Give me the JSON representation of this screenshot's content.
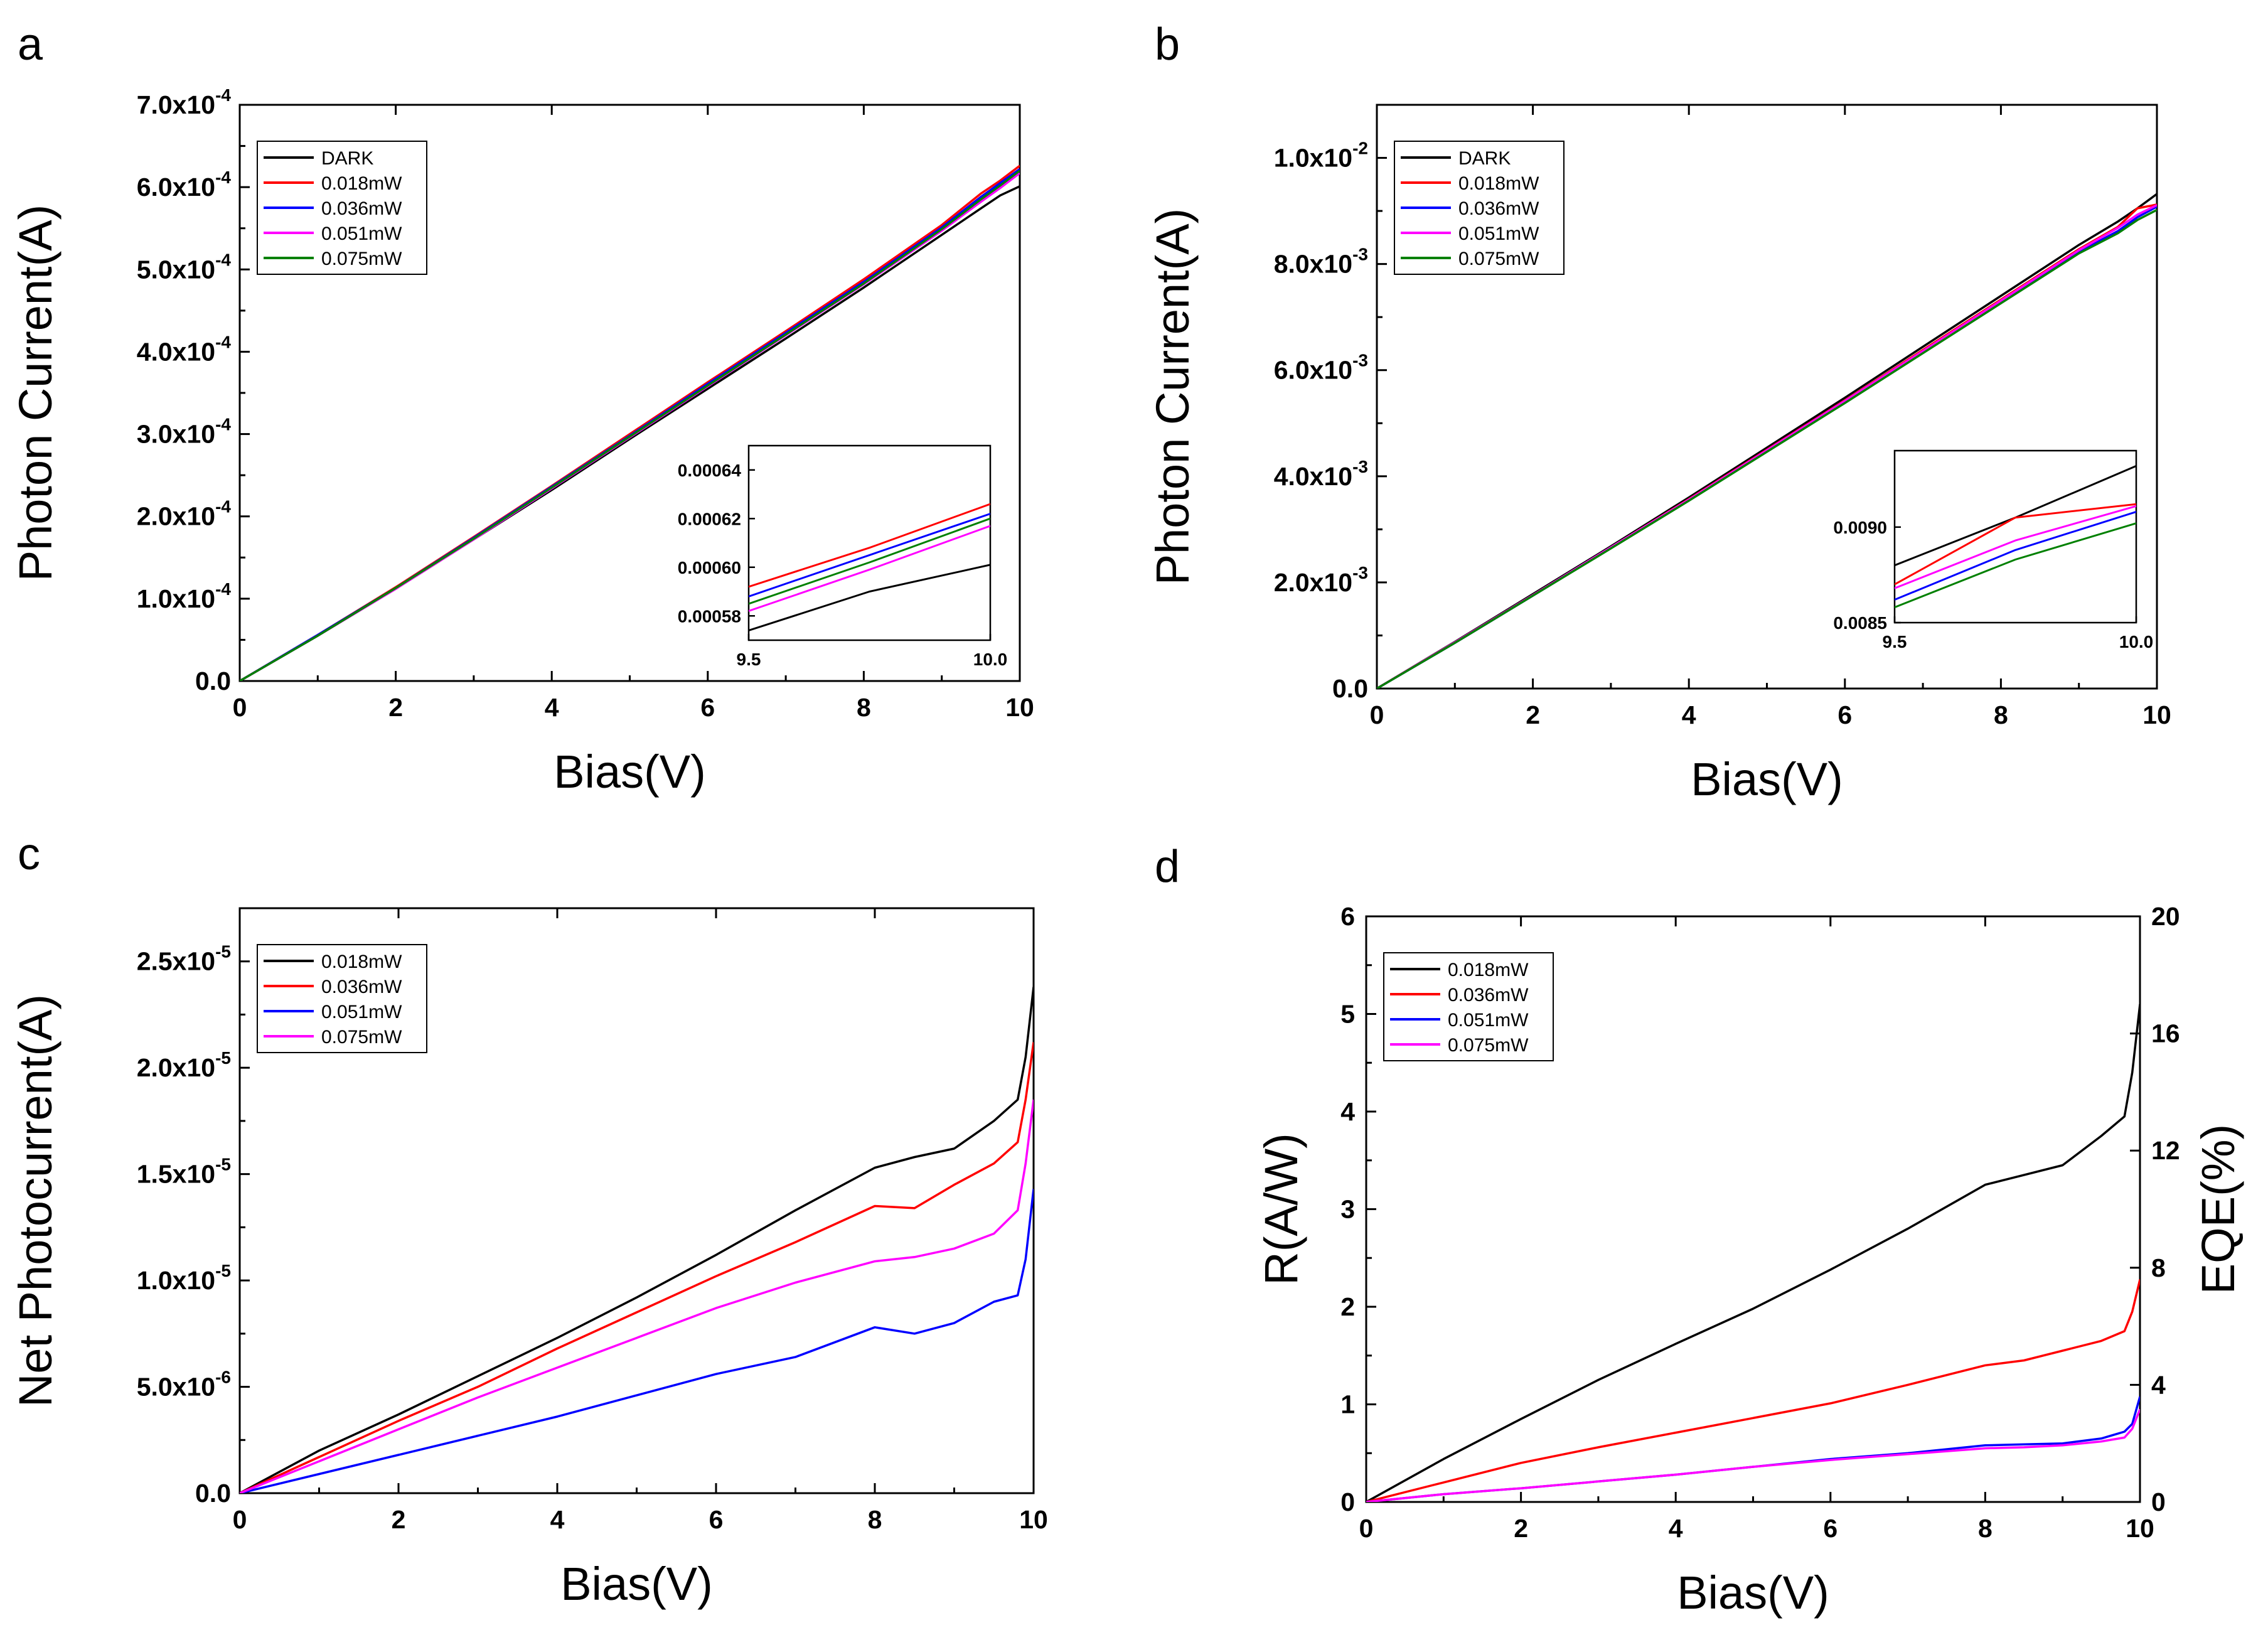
{
  "chart_data": [
    {
      "panel": "a",
      "type": "line",
      "title": "",
      "xlabel": "Bias(V)",
      "ylabel": "Photon Current(A)",
      "xlim": [
        0,
        10
      ],
      "ylim": [
        0,
        0.0007
      ],
      "x_ticks": [
        {
          "value": 0,
          "label": "0"
        },
        {
          "value": 2,
          "label": "2"
        },
        {
          "value": 4,
          "label": "4"
        },
        {
          "value": 6,
          "label": "6"
        },
        {
          "value": 8,
          "label": "8"
        },
        {
          "value": 10,
          "label": "10"
        }
      ],
      "y_ticks": [
        {
          "value": 0,
          "mantissa": "0.0",
          "exponent": ""
        },
        {
          "value": 0.0001,
          "mantissa": "1.0x10",
          "exponent": "-4"
        },
        {
          "value": 0.0002,
          "mantissa": "2.0x10",
          "exponent": "-4"
        },
        {
          "value": 0.0003,
          "mantissa": "3.0x10",
          "exponent": "-4"
        },
        {
          "value": 0.0004,
          "mantissa": "4.0x10",
          "exponent": "-4"
        },
        {
          "value": 0.0005,
          "mantissa": "5.0x10",
          "exponent": "-4"
        },
        {
          "value": 0.0006,
          "mantissa": "6.0x10",
          "exponent": "-4"
        },
        {
          "value": 0.0007,
          "mantissa": "7.0x10",
          "exponent": "-4"
        }
      ],
      "legend_position": "top-left",
      "x": [
        0,
        1,
        2,
        3,
        4,
        5,
        6,
        7,
        8,
        9,
        9.5,
        9.75,
        10
      ],
      "series": [
        {
          "name": "DARK",
          "color": "#000000",
          "values": [
            0,
            5.5e-05,
            0.000112,
            0.000172,
            0.000232,
            0.000294,
            0.000355,
            0.000416,
            0.000478,
            0.000542,
            0.000574,
            0.00059,
            0.000601
          ]
        },
        {
          "name": "0.018mW",
          "color": "#ff0000",
          "values": [
            0,
            5.6e-05,
            0.000114,
            0.000175,
            0.000237,
            0.0003,
            0.000363,
            0.000425,
            0.000488,
            0.000554,
            0.000592,
            0.000608,
            0.000626
          ]
        },
        {
          "name": "0.036mW",
          "color": "#0000ff",
          "values": [
            0,
            5.6e-05,
            0.000113,
            0.000174,
            0.000236,
            0.000298,
            0.000361,
            0.000423,
            0.000485,
            0.000551,
            0.000588,
            0.000605,
            0.000622
          ]
        },
        {
          "name": "0.051mW",
          "color": "#ff00ff",
          "values": [
            0,
            5.5e-05,
            0.000112,
            0.000172,
            0.000234,
            0.000296,
            0.000358,
            0.00042,
            0.000482,
            0.000547,
            0.000582,
            0.000599,
            0.000617
          ]
        },
        {
          "name": "0.075mW",
          "color": "#008000",
          "values": [
            0,
            5.5e-05,
            0.000113,
            0.000173,
            0.000235,
            0.000297,
            0.000359,
            0.000421,
            0.000483,
            0.000549,
            0.000585,
            0.000602,
            0.00062
          ]
        }
      ],
      "inset": {
        "xlim": [
          9.5,
          10.0
        ],
        "ylim": [
          0.00057,
          0.00065
        ],
        "x_ticks": [
          {
            "value": 9.5,
            "label": "9.5"
          },
          {
            "value": 10.0,
            "label": "10.0"
          }
        ],
        "y_ticks": [
          {
            "value": 0.00058,
            "label": "0.00058"
          },
          {
            "value": 0.0006,
            "label": "0.00060"
          },
          {
            "value": 0.00062,
            "label": "0.00062"
          },
          {
            "value": 0.00064,
            "label": "0.00064"
          }
        ]
      }
    },
    {
      "panel": "b",
      "type": "line",
      "title": "",
      "xlabel": "Bias(V)",
      "ylabel": "Photon Current(A)",
      "xlim": [
        0,
        10
      ],
      "ylim": [
        0,
        0.011
      ],
      "x_ticks": [
        {
          "value": 0,
          "label": "0"
        },
        {
          "value": 2,
          "label": "2"
        },
        {
          "value": 4,
          "label": "4"
        },
        {
          "value": 6,
          "label": "6"
        },
        {
          "value": 8,
          "label": "8"
        },
        {
          "value": 10,
          "label": "10"
        }
      ],
      "y_ticks": [
        {
          "value": 0,
          "mantissa": "0.0",
          "exponent": ""
        },
        {
          "value": 0.002,
          "mantissa": "2.0x10",
          "exponent": "-3"
        },
        {
          "value": 0.004,
          "mantissa": "4.0x10",
          "exponent": "-3"
        },
        {
          "value": 0.006,
          "mantissa": "6.0x10",
          "exponent": "-3"
        },
        {
          "value": 0.008,
          "mantissa": "8.0x10",
          "exponent": "-3"
        },
        {
          "value": 0.01,
          "mantissa": "1.0x10",
          "exponent": "-2"
        }
      ],
      "legend_position": "top-left",
      "x": [
        0,
        1,
        2,
        3,
        4,
        5,
        6,
        7,
        8,
        9,
        9.5,
        9.75,
        10
      ],
      "series": [
        {
          "name": "DARK",
          "color": "#000000",
          "values": [
            0,
            0.00088,
            0.00178,
            0.00268,
            0.0036,
            0.00454,
            0.00548,
            0.00644,
            0.0074,
            0.00836,
            0.0088,
            0.00905,
            0.00932
          ]
        },
        {
          "name": "0.018mW",
          "color": "#ff0000",
          "values": [
            0,
            0.00087,
            0.00176,
            0.00266,
            0.00357,
            0.0045,
            0.00543,
            0.00638,
            0.00733,
            0.00828,
            0.0087,
            0.00905,
            0.00912
          ]
        },
        {
          "name": "0.036mW",
          "color": "#0000ff",
          "values": [
            0,
            0.00086,
            0.00175,
            0.00265,
            0.00355,
            0.00447,
            0.0054,
            0.00634,
            0.00729,
            0.00823,
            0.00862,
            0.00888,
            0.00908
          ]
        },
        {
          "name": "0.051mW",
          "color": "#ff00ff",
          "values": [
            0,
            0.00087,
            0.00176,
            0.00266,
            0.00356,
            0.00449,
            0.00542,
            0.00636,
            0.00731,
            0.00826,
            0.00868,
            0.00893,
            0.00911
          ]
        },
        {
          "name": "0.075mW",
          "color": "#008000",
          "values": [
            0,
            0.00086,
            0.00175,
            0.00264,
            0.00354,
            0.00446,
            0.00538,
            0.00632,
            0.00726,
            0.0082,
            0.00858,
            0.00883,
            0.00902
          ]
        }
      ],
      "inset": {
        "xlim": [
          9.5,
          10.0
        ],
        "ylim": [
          0.0085,
          0.0094
        ],
        "x_ticks": [
          {
            "value": 9.5,
            "label": "9.5"
          },
          {
            "value": 10.0,
            "label": "10.0"
          }
        ],
        "y_ticks": [
          {
            "value": 0.0085,
            "label": "0.0085"
          },
          {
            "value": 0.009,
            "label": "0.0090"
          }
        ]
      }
    },
    {
      "panel": "c",
      "type": "line",
      "title": "",
      "xlabel": "Bias(V)",
      "ylabel": "Net Photocurrent(A)",
      "xlim": [
        0,
        10
      ],
      "ylim": [
        0,
        2.75e-05
      ],
      "x_ticks": [
        {
          "value": 0,
          "label": "0"
        },
        {
          "value": 2,
          "label": "2"
        },
        {
          "value": 4,
          "label": "4"
        },
        {
          "value": 6,
          "label": "6"
        },
        {
          "value": 8,
          "label": "8"
        },
        {
          "value": 10,
          "label": "10"
        }
      ],
      "y_ticks": [
        {
          "value": 0,
          "mantissa": "0.0",
          "exponent": ""
        },
        {
          "value": 5e-06,
          "mantissa": "5.0x10",
          "exponent": "-6"
        },
        {
          "value": 1e-05,
          "mantissa": "1.0x10",
          "exponent": "-5"
        },
        {
          "value": 1.5e-05,
          "mantissa": "1.5x10",
          "exponent": "-5"
        },
        {
          "value": 2e-05,
          "mantissa": "2.0x10",
          "exponent": "-5"
        },
        {
          "value": 2.5e-05,
          "mantissa": "2.5x10",
          "exponent": "-5"
        }
      ],
      "legend_position": "top-left",
      "x": [
        0,
        1,
        2,
        3,
        4,
        5,
        6,
        7,
        8,
        8.5,
        9,
        9.5,
        9.8,
        9.9,
        10
      ],
      "series": [
        {
          "name": "0.018mW",
          "color": "#000000",
          "values": [
            0,
            2e-06,
            3.7e-06,
            5.5e-06,
            7.3e-06,
            9.2e-06,
            1.12e-05,
            1.33e-05,
            1.53e-05,
            1.58e-05,
            1.62e-05,
            1.75e-05,
            1.85e-05,
            2.05e-05,
            2.38e-05
          ]
        },
        {
          "name": "0.036mW",
          "color": "#ff0000",
          "values": [
            0,
            1.7e-06,
            3.4e-06,
            5e-06,
            6.8e-06,
            8.5e-06,
            1.02e-05,
            1.18e-05,
            1.35e-05,
            1.34e-05,
            1.45e-05,
            1.55e-05,
            1.65e-05,
            1.85e-05,
            2.12e-05
          ]
        },
        {
          "name": "0.051mW",
          "color": "#0000ff",
          "values": [
            0,
            9e-07,
            1.8e-06,
            2.7e-06,
            3.6e-06,
            4.6e-06,
            5.6e-06,
            6.4e-06,
            7.8e-06,
            7.5e-06,
            8e-06,
            9e-06,
            9.3e-06,
            1.1e-05,
            1.43e-05
          ]
        },
        {
          "name": "0.075mW",
          "color": "#ff00ff",
          "values": [
            0,
            1.5e-06,
            3e-06,
            4.5e-06,
            5.9e-06,
            7.3e-06,
            8.7e-06,
            9.9e-06,
            1.09e-05,
            1.11e-05,
            1.15e-05,
            1.22e-05,
            1.33e-05,
            1.55e-05,
            1.85e-05
          ]
        }
      ]
    },
    {
      "panel": "d",
      "type": "line",
      "title": "",
      "xlabel": "Bias(V)",
      "ylabel": "R(A/W)",
      "ylabel_right": "EQE(%)",
      "xlim": [
        0,
        10
      ],
      "ylim": [
        0,
        6
      ],
      "ylim_right": [
        0,
        20
      ],
      "x_ticks": [
        {
          "value": 0,
          "label": "0"
        },
        {
          "value": 2,
          "label": "2"
        },
        {
          "value": 4,
          "label": "4"
        },
        {
          "value": 6,
          "label": "6"
        },
        {
          "value": 8,
          "label": "8"
        },
        {
          "value": 10,
          "label": "10"
        }
      ],
      "y_ticks": [
        {
          "value": 0,
          "label": "0"
        },
        {
          "value": 1,
          "label": "1"
        },
        {
          "value": 2,
          "label": "2"
        },
        {
          "value": 3,
          "label": "3"
        },
        {
          "value": 4,
          "label": "4"
        },
        {
          "value": 5,
          "label": "5"
        },
        {
          "value": 6,
          "label": "6"
        }
      ],
      "y_ticks_right": [
        {
          "value": 0,
          "label": "0"
        },
        {
          "value": 4,
          "label": "4"
        },
        {
          "value": 8,
          "label": "8"
        },
        {
          "value": 12,
          "label": "12"
        },
        {
          "value": 16,
          "label": "16"
        },
        {
          "value": 20,
          "label": "20"
        }
      ],
      "legend_position": "top-left",
      "x": [
        0,
        1,
        2,
        3,
        4,
        5,
        6,
        7,
        8,
        8.5,
        9,
        9.5,
        9.8,
        9.9,
        10
      ],
      "series": [
        {
          "name": "0.018mW",
          "color": "#000000",
          "values": [
            0,
            0.44,
            0.85,
            1.25,
            1.62,
            1.98,
            2.38,
            2.8,
            3.25,
            3.35,
            3.45,
            3.75,
            3.95,
            4.4,
            5.1
          ]
        },
        {
          "name": "0.036mW",
          "color": "#ff0000",
          "values": [
            0,
            0.2,
            0.4,
            0.56,
            0.71,
            0.86,
            1.01,
            1.2,
            1.4,
            1.45,
            1.55,
            1.65,
            1.75,
            1.95,
            2.28
          ]
        },
        {
          "name": "0.051mW",
          "color": "#0000ff",
          "values": [
            0,
            0.08,
            0.14,
            0.21,
            0.28,
            0.36,
            0.44,
            0.5,
            0.58,
            0.59,
            0.6,
            0.65,
            0.72,
            0.8,
            1.08
          ]
        },
        {
          "name": "0.075mW",
          "color": "#ff00ff",
          "values": [
            0,
            0.08,
            0.14,
            0.21,
            0.28,
            0.36,
            0.43,
            0.49,
            0.55,
            0.56,
            0.58,
            0.62,
            0.66,
            0.75,
            0.95
          ]
        }
      ]
    }
  ]
}
